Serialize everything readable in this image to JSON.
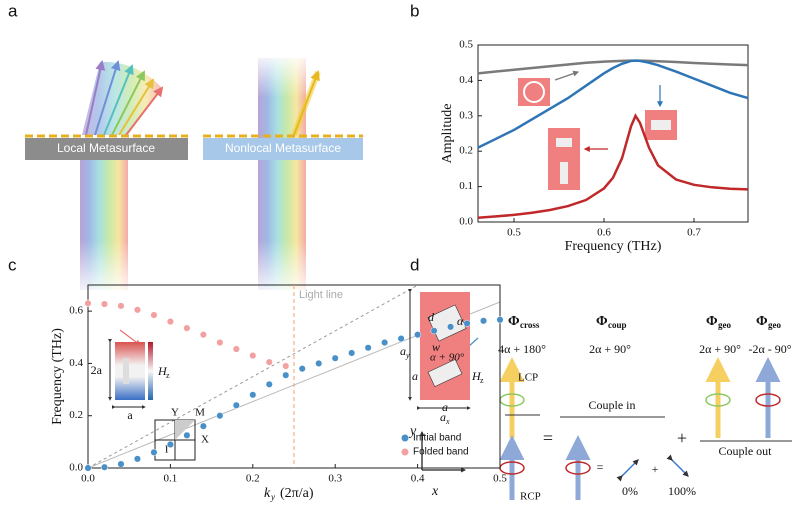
{
  "panel_labels": [
    "a",
    "b",
    "c",
    "d"
  ],
  "figure_a": {
    "left_label": "Local Metasurface",
    "right_label": "Nonlocal Metasurface"
  },
  "chart_data": [
    {
      "type": "line",
      "x_label": "Frequency (THz)",
      "y_label": "Amplitude",
      "xlim": [
        0.46,
        0.76
      ],
      "ylim": [
        0,
        0.5
      ],
      "xticks": [
        0.5,
        0.6,
        0.7
      ],
      "yticks": [
        {
          "value": 0,
          "label": "0.0"
        },
        0.1,
        0.2,
        0.3,
        0.4,
        0.5
      ],
      "x": [
        0.46,
        0.48,
        0.5,
        0.52,
        0.54,
        0.56,
        0.58,
        0.6,
        0.61,
        0.62,
        0.63,
        0.635,
        0.64,
        0.65,
        0.66,
        0.68,
        0.7,
        0.72,
        0.74,
        0.76
      ],
      "series": [
        {
          "color": "#7a7a7a",
          "values": [
            0.42,
            0.425,
            0.43,
            0.435,
            0.44,
            0.445,
            0.45,
            0.453,
            0.454,
            0.455,
            0.456,
            0.456,
            0.456,
            0.455,
            0.454,
            0.452,
            0.449,
            0.447,
            0.445,
            0.443
          ]
        },
        {
          "color": "#2e75b6",
          "values": [
            0.21,
            0.235,
            0.26,
            0.29,
            0.32,
            0.35,
            0.385,
            0.42,
            0.435,
            0.447,
            0.455,
            0.456,
            0.455,
            0.45,
            0.443,
            0.425,
            0.405,
            0.385,
            0.365,
            0.35
          ]
        },
        {
          "color": "#c0282a",
          "values": [
            0.012,
            0.016,
            0.02,
            0.026,
            0.034,
            0.045,
            0.062,
            0.095,
            0.125,
            0.18,
            0.27,
            0.3,
            0.28,
            0.21,
            0.16,
            0.12,
            0.105,
            0.098,
            0.094,
            0.092
          ]
        }
      ]
    },
    {
      "type": "scatter",
      "y_label": "Frequency (THz)",
      "x_label_symbol": "k",
      "x_label_sub": "y",
      "x_label_unit": "(2π/a)",
      "xlim": [
        0,
        0.5
      ],
      "ylim": [
        0,
        0.7
      ],
      "xticks": [
        {
          "value": 0,
          "label": "0.0"
        },
        0.1,
        0.2,
        0.3,
        0.4,
        0.5
      ],
      "yticks": [
        {
          "value": 0,
          "label": "0.0"
        },
        0.2,
        0.4,
        0.6
      ],
      "vline": 0.25,
      "vline_label": "Light line",
      "legend": "lower right",
      "series": [
        {
          "name": "Initial band",
          "color": "#4a90c8",
          "x": [
            0,
            0.02,
            0.04,
            0.06,
            0.08,
            0.1,
            0.12,
            0.14,
            0.16,
            0.18,
            0.2,
            0.22,
            0.24,
            0.26,
            0.28,
            0.3,
            0.32,
            0.34,
            0.36,
            0.38,
            0.4,
            0.42,
            0.44,
            0.46,
            0.48,
            0.5
          ],
          "values": [
            0,
            0.003,
            0.015,
            0.035,
            0.06,
            0.09,
            0.125,
            0.16,
            0.2,
            0.24,
            0.28,
            0.32,
            0.355,
            0.38,
            0.4,
            0.42,
            0.44,
            0.46,
            0.48,
            0.495,
            0.51,
            0.525,
            0.54,
            0.553,
            0.563,
            0.567
          ]
        },
        {
          "name": "Folded band",
          "color": "#f2a0a0",
          "x": [
            0,
            0.02,
            0.04,
            0.06,
            0.08,
            0.1,
            0.12,
            0.14,
            0.16,
            0.18,
            0.2,
            0.22,
            0.24
          ],
          "values": [
            0.63,
            0.627,
            0.62,
            0.605,
            0.585,
            0.56,
            0.535,
            0.51,
            0.48,
            0.455,
            0.43,
            0.405,
            0.39
          ]
        }
      ],
      "inset_left": {
        "height": "2a",
        "width": "a",
        "field": "H",
        "field_sub": "z"
      },
      "inset_right": {
        "height": "a",
        "width": "a",
        "field": "H",
        "field_sub": "z"
      },
      "zone_labels": [
        "Y",
        "M",
        "X",
        "Γ"
      ]
    }
  ],
  "figure_d": {
    "phases": [
      {
        "symbol": "Φ",
        "sub": "cross",
        "expr": "4α + 180°"
      },
      {
        "symbol": "Φ",
        "sub": "coup",
        "expr": "2α + 90°"
      },
      {
        "symbol": "Φ",
        "sub": "geo",
        "expr": "2α + 90°"
      },
      {
        "symbol": "Φ",
        "sub": "geo",
        "expr": "-2α - 90°"
      }
    ],
    "lcp": "LCP",
    "rcp": "RCP",
    "couple_in": "Couple in",
    "couple_out": "Couple out",
    "equals": "=",
    "plus": "+",
    "plus_small": "+",
    "equals_small": "=",
    "percent_low": "0%",
    "percent_high": "100%",
    "cell_labels": {
      "ay": "a",
      "ay_sub": "y",
      "ax": "a",
      "ax_sub": "x",
      "d": "d",
      "w": "w",
      "alpha": "α",
      "alpha2": "α + 90°"
    },
    "axis_x": "x",
    "axis_y": "y"
  }
}
